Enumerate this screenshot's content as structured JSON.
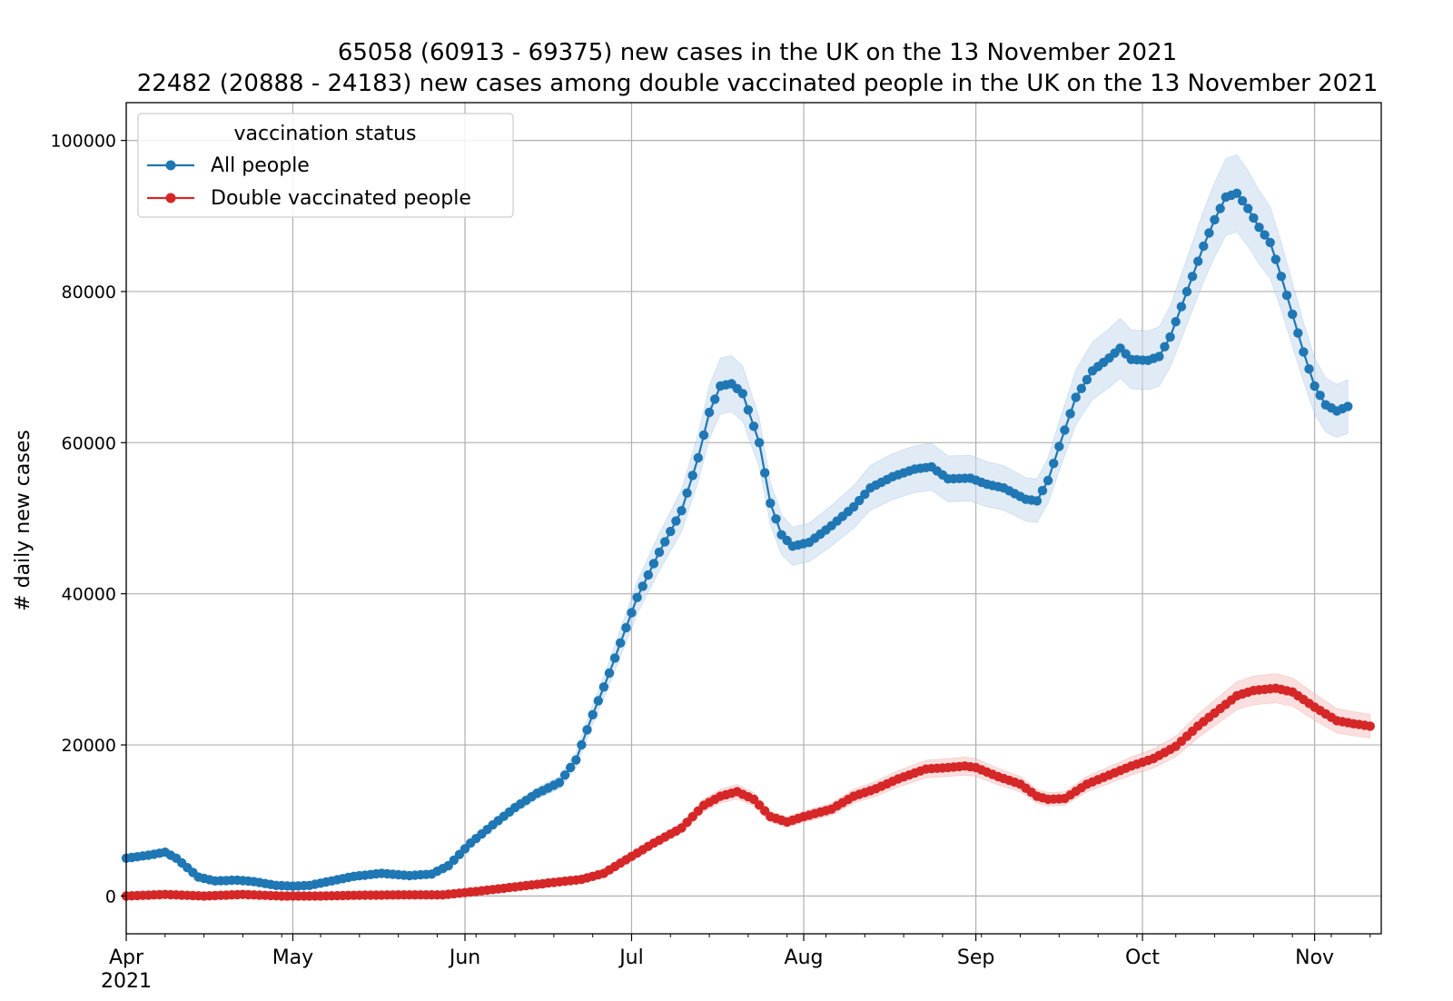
{
  "chart_data": {
    "type": "line",
    "title_line1": "65058 (60913 - 69375) new cases in the UK on the 13 November 2021",
    "title_line2": "22482 (20888 - 24183) new cases among double vaccinated people in the UK on the 13 November 2021",
    "ylabel": "# daily new cases",
    "ylim": [
      -5000,
      105000
    ],
    "yticks": [
      0,
      20000,
      40000,
      60000,
      80000,
      100000
    ],
    "ytick_labels": [
      "0",
      "20000",
      "40000",
      "60000",
      "80000",
      "100000"
    ],
    "x_start": "2021-04-01",
    "x_end_day": 226,
    "months": [
      {
        "label": "Apr",
        "day": 0
      },
      {
        "label": "May",
        "day": 30
      },
      {
        "label": "Jun",
        "day": 61
      },
      {
        "label": "Jul",
        "day": 91
      },
      {
        "label": "Aug",
        "day": 122
      },
      {
        "label": "Sep",
        "day": 153
      },
      {
        "label": "Oct",
        "day": 183
      },
      {
        "label": "Nov",
        "day": 214
      }
    ],
    "year_label": "2021",
    "legend": {
      "title": "vaccination status",
      "position": "top-left"
    },
    "series": [
      {
        "name": "All people",
        "color": "#1f77b4",
        "band_color": "#c6dbef",
        "uncertainty_frac": 0.055,
        "knots": [
          [
            0,
            5000
          ],
          [
            4,
            5400
          ],
          [
            7,
            5800
          ],
          [
            9,
            5000
          ],
          [
            13,
            2500
          ],
          [
            16,
            2000
          ],
          [
            20,
            2100
          ],
          [
            23,
            1900
          ],
          [
            27,
            1400
          ],
          [
            30,
            1300
          ],
          [
            33,
            1400
          ],
          [
            37,
            2000
          ],
          [
            41,
            2600
          ],
          [
            46,
            3000
          ],
          [
            51,
            2700
          ],
          [
            55,
            2900
          ],
          [
            58,
            4000
          ],
          [
            62,
            7000
          ],
          [
            66,
            9400
          ],
          [
            70,
            11700
          ],
          [
            74,
            13600
          ],
          [
            78,
            15000
          ],
          [
            81,
            18000
          ],
          [
            84,
            24000
          ],
          [
            87,
            29500
          ],
          [
            89,
            33500
          ],
          [
            92,
            39500
          ],
          [
            96,
            45500
          ],
          [
            100,
            51000
          ],
          [
            103,
            58000
          ],
          [
            105,
            64000
          ],
          [
            107,
            67500
          ],
          [
            109,
            67800
          ],
          [
            111,
            66500
          ],
          [
            114,
            60000
          ],
          [
            116,
            52000
          ],
          [
            118,
            47800
          ],
          [
            120,
            46300
          ],
          [
            123,
            46800
          ],
          [
            127,
            49000
          ],
          [
            131,
            51500
          ],
          [
            134,
            54000
          ],
          [
            138,
            55500
          ],
          [
            142,
            56500
          ],
          [
            145,
            56800
          ],
          [
            148,
            55200
          ],
          [
            152,
            55300
          ],
          [
            155,
            54500
          ],
          [
            158,
            54000
          ],
          [
            162,
            52500
          ],
          [
            164,
            52300
          ],
          [
            166,
            55000
          ],
          [
            168,
            59500
          ],
          [
            171,
            66000
          ],
          [
            174,
            69500
          ],
          [
            177,
            71200
          ],
          [
            179,
            72500
          ],
          [
            181,
            71000
          ],
          [
            184,
            70900
          ],
          [
            186,
            71400
          ],
          [
            188,
            74000
          ],
          [
            191,
            80000
          ],
          [
            194,
            86000
          ],
          [
            196,
            89500
          ],
          [
            198,
            92500
          ],
          [
            200,
            93000
          ],
          [
            202,
            91000
          ],
          [
            204,
            88500
          ],
          [
            206,
            86500
          ],
          [
            208,
            82000
          ],
          [
            210,
            77000
          ],
          [
            212,
            72000
          ],
          [
            214,
            67500
          ],
          [
            216,
            65000
          ],
          [
            218,
            64200
          ],
          [
            220,
            64800
          ]
        ]
      },
      {
        "name": "Double vaccinated people",
        "color": "#d62728",
        "band_color": "#f7c4c5",
        "uncertainty_frac": 0.07,
        "knots": [
          [
            0,
            0
          ],
          [
            7,
            200
          ],
          [
            14,
            0
          ],
          [
            21,
            200
          ],
          [
            28,
            0
          ],
          [
            35,
            0
          ],
          [
            42,
            100
          ],
          [
            50,
            150
          ],
          [
            57,
            150
          ],
          [
            63,
            600
          ],
          [
            70,
            1200
          ],
          [
            77,
            1800
          ],
          [
            82,
            2200
          ],
          [
            86,
            3000
          ],
          [
            90,
            4800
          ],
          [
            95,
            7000
          ],
          [
            100,
            9000
          ],
          [
            104,
            12000
          ],
          [
            107,
            13200
          ],
          [
            110,
            13800
          ],
          [
            113,
            12800
          ],
          [
            116,
            10500
          ],
          [
            119,
            9800
          ],
          [
            122,
            10500
          ],
          [
            127,
            11500
          ],
          [
            131,
            13200
          ],
          [
            135,
            14200
          ],
          [
            139,
            15500
          ],
          [
            144,
            16800
          ],
          [
            148,
            17000
          ],
          [
            151,
            17200
          ],
          [
            153,
            17000
          ],
          [
            157,
            15800
          ],
          [
            161,
            14800
          ],
          [
            164,
            13200
          ],
          [
            166,
            12800
          ],
          [
            169,
            12900
          ],
          [
            173,
            14800
          ],
          [
            177,
            16000
          ],
          [
            181,
            17200
          ],
          [
            185,
            18200
          ],
          [
            189,
            19800
          ],
          [
            193,
            22500
          ],
          [
            197,
            24800
          ],
          [
            200,
            26500
          ],
          [
            203,
            27200
          ],
          [
            207,
            27500
          ],
          [
            210,
            27000
          ],
          [
            214,
            25000
          ],
          [
            218,
            23200
          ],
          [
            221,
            22800
          ],
          [
            224,
            22482
          ]
        ]
      }
    ]
  }
}
